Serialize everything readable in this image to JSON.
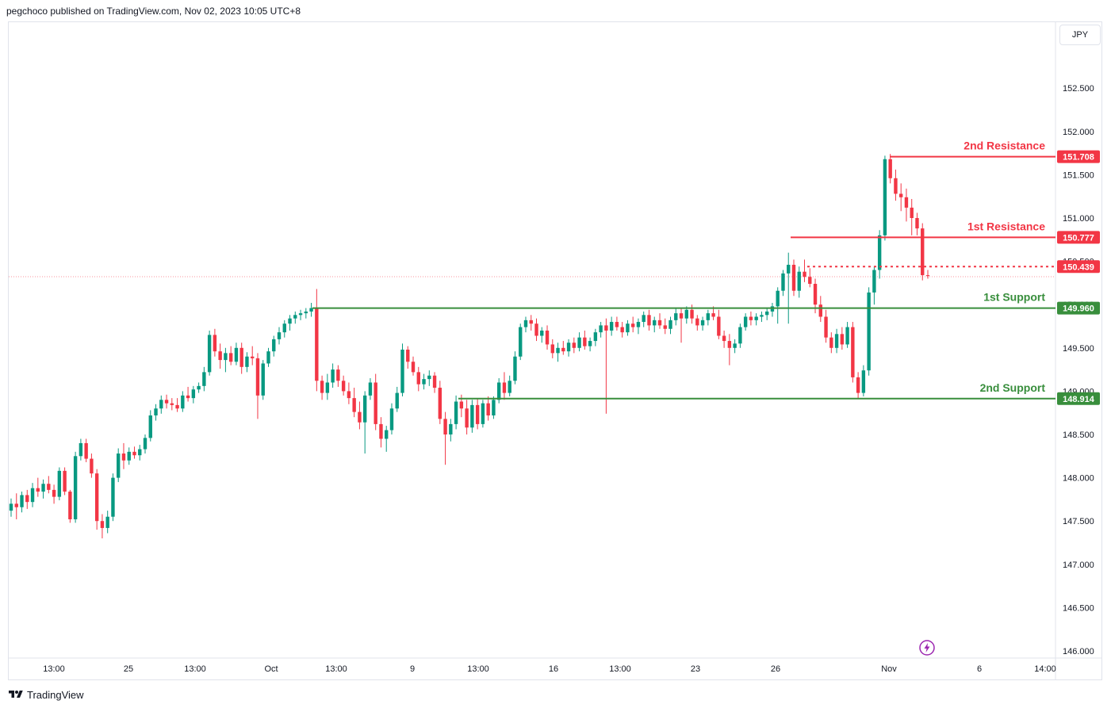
{
  "header": {
    "attribution": "pegchoco published on TradingView.com, Nov 02, 2023 10:05 UTC+8"
  },
  "footer": {
    "brand": "TradingView",
    "logo_icon": "tradingview-logo-icon"
  },
  "currency_button": {
    "label": "JPY"
  },
  "colors": {
    "up": "#089981",
    "down": "#f23645",
    "resistance": "#f23645",
    "support": "#388e3c",
    "axis_text": "#131722",
    "grid_border": "#e0e3eb"
  },
  "chart_data": {
    "type": "candlestick",
    "title": "",
    "xlabel": "",
    "ylabel": "",
    "ylim": [
      146.0,
      153.0
    ],
    "y_ticks": [
      "152.500",
      "152.000",
      "151.500",
      "151.000",
      "150.500",
      "150.000",
      "149.500",
      "149.000",
      "148.500",
      "148.000",
      "147.500",
      "147.000",
      "146.500",
      "146.000"
    ],
    "x_ticks": [
      "13:00",
      "25",
      "13:00",
      "Oct",
      "13:00",
      "9",
      "13:00",
      "16",
      "13:00",
      "23",
      "26",
      "Nov",
      "6",
      "14:00"
    ],
    "current_price": {
      "value": 150.439,
      "label": "150.439"
    },
    "levels": [
      {
        "name": "2nd Resistance",
        "value": 151.708,
        "label": "151.708",
        "kind": "resistance"
      },
      {
        "name": "1st Resistance",
        "value": 150.777,
        "label": "150.777",
        "kind": "resistance"
      },
      {
        "name": "1st Support",
        "value": 149.96,
        "label": "149.960",
        "kind": "support"
      },
      {
        "name": "2nd Support",
        "value": 148.914,
        "label": "148.914",
        "kind": "support"
      }
    ],
    "candles_ohlc": [
      [
        147.62,
        147.76,
        147.55,
        147.7
      ],
      [
        147.7,
        147.82,
        147.52,
        147.66
      ],
      [
        147.66,
        147.84,
        147.6,
        147.8
      ],
      [
        147.8,
        147.86,
        147.64,
        147.72
      ],
      [
        147.72,
        147.94,
        147.66,
        147.88
      ],
      [
        147.88,
        148.0,
        147.78,
        147.84
      ],
      [
        147.84,
        147.98,
        147.76,
        147.93
      ],
      [
        147.93,
        148.02,
        147.82,
        147.86
      ],
      [
        147.86,
        147.92,
        147.7,
        147.78
      ],
      [
        147.78,
        148.12,
        147.74,
        148.08
      ],
      [
        148.08,
        148.12,
        147.8,
        147.84
      ],
      [
        147.84,
        147.86,
        147.48,
        147.52
      ],
      [
        147.52,
        148.3,
        147.48,
        148.25
      ],
      [
        148.25,
        148.45,
        148.2,
        148.4
      ],
      [
        148.4,
        148.45,
        148.18,
        148.22
      ],
      [
        148.22,
        148.28,
        148.0,
        148.05
      ],
      [
        148.05,
        148.1,
        147.4,
        147.5
      ],
      [
        147.5,
        147.58,
        147.3,
        147.42
      ],
      [
        147.42,
        147.62,
        147.36,
        147.55
      ],
      [
        147.55,
        148.05,
        147.5,
        148.0
      ],
      [
        148.0,
        148.34,
        147.95,
        148.28
      ],
      [
        148.28,
        148.4,
        148.1,
        148.2
      ],
      [
        148.2,
        148.35,
        148.15,
        148.3
      ],
      [
        148.3,
        148.36,
        148.22,
        148.26
      ],
      [
        148.26,
        148.38,
        148.2,
        148.33
      ],
      [
        148.33,
        148.5,
        148.28,
        148.46
      ],
      [
        148.46,
        148.78,
        148.42,
        148.72
      ],
      [
        148.72,
        148.85,
        148.66,
        148.8
      ],
      [
        148.8,
        148.95,
        148.74,
        148.9
      ],
      [
        148.9,
        148.96,
        148.8,
        148.86
      ],
      [
        148.86,
        148.92,
        148.78,
        148.84
      ],
      [
        148.84,
        148.92,
        148.76,
        148.8
      ],
      [
        148.8,
        149.0,
        148.76,
        148.95
      ],
      [
        148.95,
        149.05,
        148.88,
        148.92
      ],
      [
        148.92,
        149.06,
        148.86,
        149.02
      ],
      [
        149.02,
        149.1,
        148.98,
        149.06
      ],
      [
        149.06,
        149.28,
        149.0,
        149.22
      ],
      [
        149.22,
        149.7,
        149.18,
        149.65
      ],
      [
        149.65,
        149.72,
        149.4,
        149.46
      ],
      [
        149.46,
        149.55,
        149.26,
        149.36
      ],
      [
        149.36,
        149.5,
        149.22,
        149.44
      ],
      [
        149.44,
        149.52,
        149.3,
        149.34
      ],
      [
        149.34,
        149.56,
        149.3,
        149.5
      ],
      [
        149.5,
        149.56,
        149.2,
        149.28
      ],
      [
        149.28,
        149.45,
        149.22,
        149.4
      ],
      [
        149.4,
        149.52,
        149.3,
        149.38
      ],
      [
        149.38,
        149.44,
        148.68,
        148.95
      ],
      [
        148.95,
        149.36,
        148.9,
        149.32
      ],
      [
        149.32,
        149.5,
        149.28,
        149.46
      ],
      [
        149.46,
        149.64,
        149.4,
        149.6
      ],
      [
        149.6,
        149.74,
        149.54,
        149.68
      ],
      [
        149.68,
        149.82,
        149.62,
        149.78
      ],
      [
        149.78,
        149.88,
        149.7,
        149.84
      ],
      [
        149.84,
        149.92,
        149.78,
        149.88
      ],
      [
        149.88,
        149.94,
        149.82,
        149.9
      ],
      [
        149.9,
        149.96,
        149.84,
        149.92
      ],
      [
        149.92,
        150.02,
        149.86,
        149.96
      ],
      [
        149.96,
        150.18,
        149.0,
        149.12
      ],
      [
        149.12,
        149.18,
        148.9,
        148.98
      ],
      [
        148.98,
        149.2,
        148.9,
        149.1
      ],
      [
        149.1,
        149.32,
        149.04,
        149.25
      ],
      [
        149.25,
        149.3,
        149.05,
        149.12
      ],
      [
        149.12,
        149.18,
        148.95,
        149.0
      ],
      [
        149.0,
        149.1,
        148.85,
        148.92
      ],
      [
        148.92,
        149.04,
        148.7,
        148.76
      ],
      [
        148.76,
        148.88,
        148.56,
        148.64
      ],
      [
        148.64,
        149.0,
        148.28,
        148.95
      ],
      [
        148.95,
        149.15,
        148.9,
        149.1
      ],
      [
        149.1,
        149.2,
        148.55,
        148.62
      ],
      [
        148.62,
        148.7,
        148.35,
        148.45
      ],
      [
        148.45,
        148.6,
        148.3,
        148.55
      ],
      [
        148.55,
        148.86,
        148.5,
        148.8
      ],
      [
        148.8,
        149.05,
        148.76,
        148.98
      ],
      [
        148.98,
        149.55,
        148.94,
        149.48
      ],
      [
        149.48,
        149.52,
        149.26,
        149.34
      ],
      [
        149.34,
        149.4,
        149.18,
        149.22
      ],
      [
        149.22,
        149.28,
        149.0,
        149.08
      ],
      [
        149.08,
        149.2,
        149.02,
        149.14
      ],
      [
        149.14,
        149.24,
        149.06,
        149.18
      ],
      [
        149.18,
        149.22,
        148.98,
        149.04
      ],
      [
        149.04,
        149.12,
        148.62,
        148.68
      ],
      [
        148.68,
        148.76,
        148.15,
        148.5
      ],
      [
        148.5,
        148.68,
        148.42,
        148.62
      ],
      [
        148.62,
        148.95,
        148.56,
        148.88
      ],
      [
        148.88,
        148.96,
        148.7,
        148.8
      ],
      [
        148.8,
        148.9,
        148.5,
        148.58
      ],
      [
        148.58,
        148.9,
        148.52,
        148.84
      ],
      [
        148.84,
        148.92,
        148.56,
        148.62
      ],
      [
        148.62,
        148.9,
        148.58,
        148.86
      ],
      [
        148.86,
        148.94,
        148.66,
        148.72
      ],
      [
        148.72,
        148.94,
        148.68,
        148.9
      ],
      [
        148.9,
        149.15,
        148.86,
        149.1
      ],
      [
        149.1,
        149.22,
        148.9,
        148.98
      ],
      [
        148.98,
        149.18,
        148.94,
        149.12
      ],
      [
        149.12,
        149.46,
        149.08,
        149.4
      ],
      [
        149.4,
        149.78,
        149.36,
        149.74
      ],
      [
        149.74,
        149.86,
        149.68,
        149.82
      ],
      [
        149.82,
        149.88,
        149.7,
        149.78
      ],
      [
        149.78,
        149.84,
        149.58,
        149.64
      ],
      [
        149.64,
        149.74,
        149.56,
        149.7
      ],
      [
        149.7,
        149.76,
        149.48,
        149.54
      ],
      [
        149.54,
        149.6,
        149.38,
        149.44
      ],
      [
        149.44,
        149.56,
        149.34,
        149.5
      ],
      [
        149.5,
        149.58,
        149.42,
        149.46
      ],
      [
        149.46,
        149.6,
        149.4,
        149.56
      ],
      [
        149.56,
        149.62,
        149.44,
        149.5
      ],
      [
        149.5,
        149.68,
        149.46,
        149.62
      ],
      [
        149.62,
        149.7,
        149.48,
        149.52
      ],
      [
        149.52,
        149.62,
        149.46,
        149.58
      ],
      [
        149.58,
        149.72,
        149.52,
        149.68
      ],
      [
        149.68,
        149.8,
        149.62,
        149.76
      ],
      [
        149.76,
        149.84,
        148.74,
        149.7
      ],
      [
        149.7,
        149.86,
        149.64,
        149.8
      ],
      [
        149.8,
        149.86,
        149.7,
        149.74
      ],
      [
        149.74,
        149.8,
        149.62,
        149.68
      ],
      [
        149.68,
        149.82,
        149.64,
        149.78
      ],
      [
        149.78,
        149.86,
        149.68,
        149.74
      ],
      [
        149.74,
        149.84,
        149.66,
        149.8
      ],
      [
        149.8,
        149.92,
        149.74,
        149.88
      ],
      [
        149.88,
        149.94,
        149.7,
        149.76
      ],
      [
        149.76,
        149.86,
        149.68,
        149.82
      ],
      [
        149.82,
        149.9,
        149.72,
        149.76
      ],
      [
        149.76,
        149.84,
        149.66,
        149.72
      ],
      [
        149.72,
        149.86,
        149.66,
        149.82
      ],
      [
        149.82,
        149.96,
        149.76,
        149.9
      ],
      [
        149.9,
        149.96,
        149.56,
        149.84
      ],
      [
        149.84,
        149.98,
        149.78,
        149.94
      ],
      [
        149.94,
        150.0,
        149.78,
        149.84
      ],
      [
        149.84,
        149.88,
        149.7,
        149.76
      ],
      [
        149.76,
        149.86,
        149.7,
        149.82
      ],
      [
        149.82,
        149.94,
        149.76,
        149.9
      ],
      [
        149.9,
        149.98,
        149.82,
        149.86
      ],
      [
        149.86,
        149.94,
        149.6,
        149.64
      ],
      [
        149.64,
        149.7,
        149.5,
        149.58
      ],
      [
        149.58,
        149.66,
        149.3,
        149.5
      ],
      [
        149.5,
        149.6,
        149.44,
        149.55
      ],
      [
        149.55,
        149.78,
        149.5,
        149.74
      ],
      [
        149.74,
        149.9,
        149.7,
        149.86
      ],
      [
        149.86,
        149.92,
        149.76,
        149.82
      ],
      [
        149.82,
        149.9,
        149.76,
        149.86
      ],
      [
        149.86,
        149.92,
        149.8,
        149.88
      ],
      [
        149.88,
        149.96,
        149.82,
        149.92
      ],
      [
        149.92,
        150.02,
        149.86,
        149.98
      ],
      [
        149.98,
        150.2,
        149.78,
        150.16
      ],
      [
        150.16,
        150.4,
        150.1,
        150.36
      ],
      [
        150.36,
        150.6,
        149.78,
        150.46
      ],
      [
        150.46,
        150.52,
        150.1,
        150.16
      ],
      [
        150.16,
        150.44,
        150.08,
        150.38
      ],
      [
        150.38,
        150.52,
        150.26,
        150.32
      ],
      [
        150.32,
        150.42,
        150.2,
        150.24
      ],
      [
        150.24,
        150.3,
        149.9,
        150.0
      ],
      [
        150.0,
        150.1,
        149.8,
        149.86
      ],
      [
        149.86,
        149.94,
        149.56,
        149.62
      ],
      [
        149.62,
        149.68,
        149.44,
        149.5
      ],
      [
        149.5,
        149.72,
        149.44,
        149.66
      ],
      [
        149.66,
        149.74,
        149.48,
        149.54
      ],
      [
        149.54,
        149.8,
        149.5,
        149.74
      ],
      [
        149.74,
        149.8,
        149.1,
        149.16
      ],
      [
        149.16,
        149.22,
        148.92,
        148.98
      ],
      [
        148.98,
        149.3,
        148.94,
        149.24
      ],
      [
        149.24,
        150.2,
        149.18,
        150.14
      ],
      [
        150.14,
        150.44,
        150.0,
        150.4
      ],
      [
        150.4,
        150.86,
        150.3,
        150.8
      ],
      [
        150.8,
        151.72,
        150.74,
        151.68
      ],
      [
        151.68,
        151.74,
        151.4,
        151.46
      ],
      [
        151.46,
        151.56,
        151.2,
        151.28
      ],
      [
        151.28,
        151.4,
        151.08,
        151.24
      ],
      [
        151.24,
        151.34,
        150.96,
        151.12
      ],
      [
        151.12,
        151.22,
        150.8,
        151.0
      ],
      [
        151.0,
        151.06,
        150.8,
        150.88
      ],
      [
        150.88,
        150.94,
        150.28,
        150.34
      ],
      [
        150.34,
        150.4,
        150.3,
        150.33
      ]
    ]
  }
}
